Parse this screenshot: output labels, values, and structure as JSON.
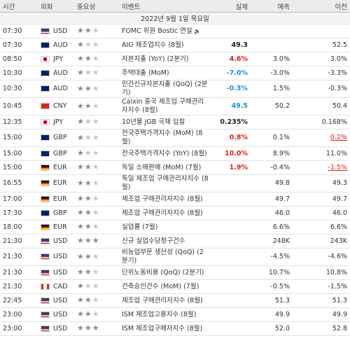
{
  "header": {
    "time": "시간",
    "currency": "외화",
    "importance": "중요성",
    "event": "이벤트",
    "actual": "실제",
    "forecast": "예측",
    "previous": "이전"
  },
  "date": "2022년 9월 1일 목요일",
  "rows": [
    {
      "time": "07:30",
      "currency": "USD",
      "importance": 2,
      "event": "FOMC 위원 Bostic 연설",
      "speech": true
    },
    {
      "time": "07:30",
      "currency": "AUD",
      "importance": 1,
      "event": "AIG 제조업지수 (8월)",
      "actual": "49.3",
      "actual_color": "#222222",
      "previous": "52.5"
    },
    {
      "time": "08:50",
      "currency": "JPY",
      "importance": 2,
      "event": "자본지출 (YoY) (2분기)",
      "actual": "4.6%",
      "actual_color": "#e41f1f",
      "forecast": "3.0%",
      "previous": "3.0%"
    },
    {
      "time": "10:30",
      "currency": "AUD",
      "importance": 1,
      "event": "주택대출 (MoM)",
      "actual": "-7.0%",
      "actual_color": "#1b8fdf",
      "forecast": "-3.0%",
      "previous": "-3.3%"
    },
    {
      "time": "10:30",
      "currency": "AUD",
      "importance": 2,
      "event": "민간신규자본지출 (QoQ) (2분기)",
      "actual": "-0.3%",
      "actual_color": "#1b8fdf",
      "forecast": "1.5%",
      "previous": "-0.3%"
    },
    {
      "time": "10:45",
      "currency": "CNY",
      "importance": 2,
      "event": "Caixin 중국 제조업 구매관리자지수 (8월)",
      "actual": "49.5",
      "actual_color": "#1b8fdf",
      "forecast": "50.2",
      "previous": "50.4"
    },
    {
      "time": "12:35",
      "currency": "JPY",
      "importance": 1,
      "event": "10년물 JGB 국채 입찰",
      "actual": "0.235%",
      "actual_color": "#222222",
      "previous": "0.168%"
    },
    {
      "time": "15:00",
      "currency": "GBP",
      "importance": 1,
      "event": "전국주택가격지수 (MoM) (8월)",
      "actual": "0.8%",
      "actual_color": "#e41f1f",
      "forecast": "0.1%",
      "previous": "0.2%",
      "previous_color": "#e41f1f"
    },
    {
      "time": "15:00",
      "currency": "GBP",
      "importance": 1,
      "event": "전국주택가격지수 (YoY) (8월)",
      "actual": "10.0%",
      "actual_color": "#e41f1f",
      "forecast": "8.9%",
      "previous": "11.0%"
    },
    {
      "time": "15:00",
      "currency": "EUR",
      "importance": 2,
      "event": "독일 소매판매 (MoM) (7월)",
      "actual": "1.9%",
      "actual_color": "#e41f1f",
      "forecast": "-0.4%",
      "previous": "-1.5%",
      "previous_color": "#e41f1f"
    },
    {
      "time": "16:55",
      "currency": "EUR",
      "importance": 2,
      "event": "독일 제조업 구매관리자지수 (8월)",
      "forecast": "49.8",
      "previous": "49.3"
    },
    {
      "time": "17:00",
      "currency": "EUR",
      "importance": 2,
      "event": "제조업 구매관리자지수 (8월)",
      "forecast": "49.7",
      "previous": "49.7"
    },
    {
      "time": "17:30",
      "currency": "GBP",
      "importance": 2,
      "event": "제조업 구매관리자지수 (8월)",
      "forecast": "46.0",
      "previous": "46.0"
    },
    {
      "time": "18:00",
      "currency": "EUR",
      "importance": 2,
      "event": "실업률 (7월)",
      "forecast": "6.6%",
      "previous": "6.6%"
    },
    {
      "time": "21:30",
      "currency": "USD",
      "importance": 3,
      "event": "신규 실업수당청구건수",
      "forecast": "248K",
      "previous": "243K"
    },
    {
      "time": "21:30",
      "currency": "USD",
      "importance": 2,
      "event": "비농업부문 생산성 (QoQ) (2분기)",
      "forecast": "-4.5%",
      "previous": "-4.6%"
    },
    {
      "time": "21:30",
      "currency": "USD",
      "importance": 2,
      "event": "단위노동비용 (QoQ) (2분기)",
      "forecast": "10.7%",
      "previous": "10.8%"
    },
    {
      "time": "21:30",
      "currency": "CAD",
      "importance": 1,
      "event": "건축승인건수 (MoM) (7월)",
      "forecast": "-0.5%",
      "previous": "-1.5%"
    },
    {
      "time": "22:45",
      "currency": "USD",
      "importance": 2,
      "event": "제조업 구매관리자지수 (8월)",
      "forecast": "51.3",
      "previous": "51.3"
    },
    {
      "time": "23:00",
      "currency": "USD",
      "importance": 2,
      "event": "ISM 제조업고용지수 (8월)",
      "forecast": "49.9",
      "previous": "49.9"
    },
    {
      "time": "23:00",
      "currency": "USD",
      "importance": 3,
      "event": "ISM 제조업구매자지수 (8월)",
      "forecast": "52.0",
      "previous": "52.8"
    }
  ]
}
